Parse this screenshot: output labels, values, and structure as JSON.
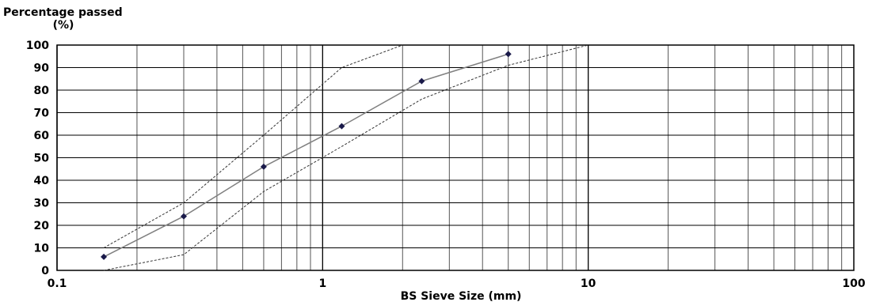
{
  "chart_data": {
    "type": "line",
    "title": "",
    "ylabel_line1": "Percentage passed",
    "ylabel_line2": "(%)",
    "xlabel": "BS Sieve Size (mm)",
    "xscale": "log",
    "xlim": [
      0.1,
      100
    ],
    "ylim": [
      0,
      100
    ],
    "grid": true,
    "x_tick_labels": [
      "0.1",
      "1",
      "10",
      "100"
    ],
    "y_tick_labels": [
      "0",
      "10",
      "20",
      "30",
      "40",
      "50",
      "60",
      "70",
      "80",
      "90",
      "100"
    ],
    "series": [
      {
        "style": "solid-with-markers",
        "color": "#808080",
        "marker_color": "#1a1a4a",
        "x": [
          0.15,
          0.3,
          0.6,
          1.18,
          2.36,
          5.0
        ],
        "y": [
          6,
          24,
          46,
          64,
          84,
          96
        ]
      },
      {
        "style": "dashed-upper-limit",
        "color": "#333333",
        "x": [
          0.15,
          0.3,
          0.6,
          1.18,
          2.0
        ],
        "y": [
          10,
          30,
          60,
          90,
          100
        ]
      },
      {
        "style": "dashed-lower-limit",
        "color": "#333333",
        "x": [
          0.15,
          0.3,
          0.6,
          1.18,
          2.36,
          5.0,
          10.0
        ],
        "y": [
          0,
          7,
          35,
          55,
          76,
          91,
          100
        ]
      }
    ]
  }
}
